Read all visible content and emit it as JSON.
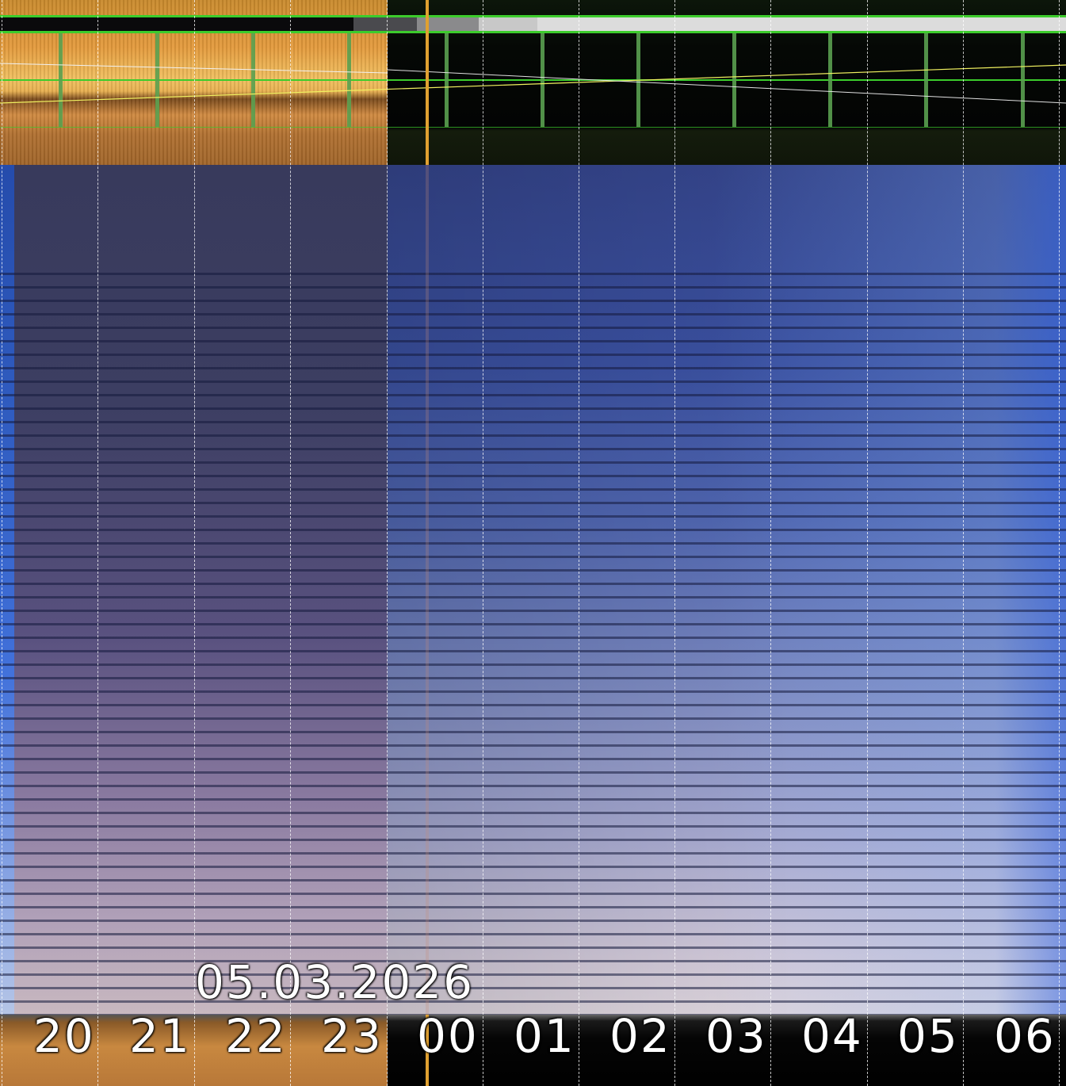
{
  "keogram": {
    "date": "05.03.2026",
    "hours": [
      "20",
      "21",
      "22",
      "23",
      "00",
      "01",
      "02",
      "03",
      "04",
      "05",
      "06"
    ]
  },
  "colors": {
    "grid_green": "#3ccc2c",
    "twilight_orange": "#e49a3c",
    "sky_blue": "#3a50a0"
  }
}
